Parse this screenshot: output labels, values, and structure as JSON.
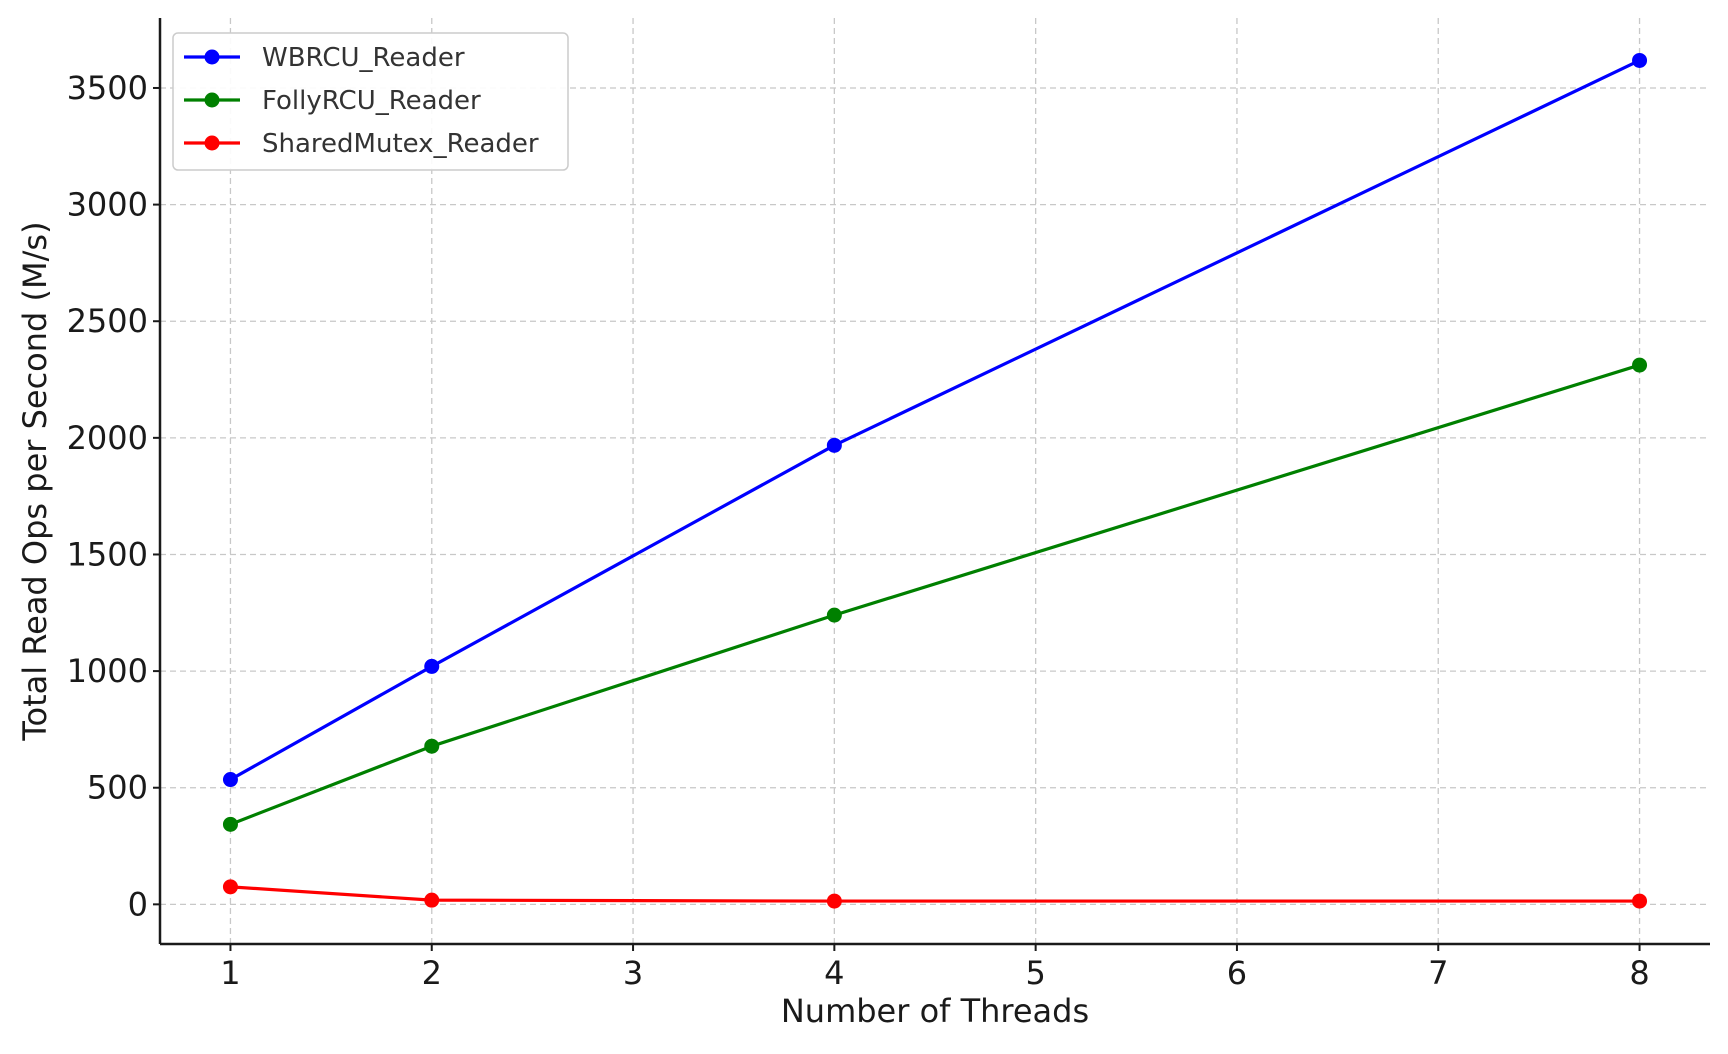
{
  "chart_data": {
    "type": "line",
    "title": "",
    "xlabel": "Number of Threads",
    "ylabel": "Total Read Ops per Second (M/s)",
    "xlim": [
      0.65,
      8.35
    ],
    "ylim": [
      -170,
      3800
    ],
    "xticks": [
      1,
      2,
      3,
      4,
      5,
      6,
      7,
      8
    ],
    "yticks": [
      0,
      500,
      1000,
      1500,
      2000,
      2500,
      3000,
      3500
    ],
    "grid": true,
    "legend_position": "top-left",
    "x": [
      1,
      2,
      4,
      8
    ],
    "series": [
      {
        "name": "WBRCU_Reader",
        "color": "#0000ff",
        "marker": "circle",
        "values": [
          535,
          1020,
          1968,
          3618
        ]
      },
      {
        "name": "FollyRCU_Reader",
        "color": "#008000",
        "marker": "circle",
        "values": [
          343,
          678,
          1240,
          2312
        ]
      },
      {
        "name": "SharedMutex_Reader",
        "color": "#ff0000",
        "marker": "circle",
        "values": [
          75,
          18,
          14,
          14
        ]
      }
    ]
  }
}
